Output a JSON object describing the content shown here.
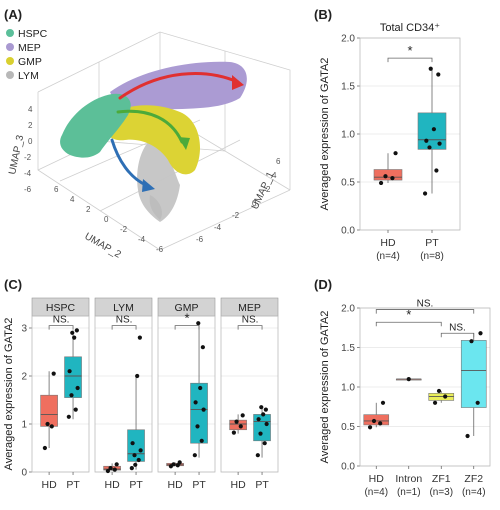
{
  "panel_labels": [
    "(A)",
    "(B)",
    "(C)",
    "(D)"
  ],
  "colors": {
    "hsc": "#5bbf9a",
    "mep": "#a999d1",
    "gmp": "#d9d030",
    "lym": "#b8b8b8",
    "hd": "#ef6f5f",
    "pt": "#20b5c0",
    "intron": "#f0aa9e",
    "zf1": "#e9ed5a",
    "zf2": "#6be6ef",
    "strip_bg": "#d3d3d3",
    "grid": "#e4e4e4",
    "arrow_red": "#e03030",
    "arrow_green": "#4caa3a",
    "arrow_blue": "#2e6fb5"
  },
  "umap": {
    "legend": [
      {
        "label": "HSPC",
        "color": "#5bbf9a"
      },
      {
        "label": "MEP",
        "color": "#a999d1"
      },
      {
        "label": "GMP",
        "color": "#d9d030"
      },
      {
        "label": "LYM",
        "color": "#b8b8b8"
      }
    ],
    "axis_labels": {
      "x": "UMAP_2",
      "y": "UMAP_1",
      "z": "UMAP_3"
    },
    "ticks_z": [
      "4",
      "2",
      "0",
      "-2",
      "-4",
      "-6"
    ],
    "ticks_x": [
      "6",
      "4",
      "2",
      "0",
      "-2",
      "-4",
      "-6"
    ],
    "ticks_y": [
      "-6",
      "-4",
      "-2",
      "0",
      "2",
      "4",
      "6"
    ]
  },
  "chart_data": [
    {
      "panel": "(B)",
      "type": "box",
      "title": "Total CD34⁺",
      "ylabel": "Averaged expression of GATA2",
      "ylim": [
        0,
        2.0
      ],
      "yticks": [
        "0.0",
        "0.5",
        "1.0",
        "1.5",
        "2.0"
      ],
      "categories": [
        "HD\n(n=4)",
        "PT\n(n=8)"
      ],
      "boxes": [
        {
          "category": "HD",
          "n": "(n=4)",
          "color": "#ef6f5f",
          "min": 0.49,
          "q1": 0.52,
          "median": 0.55,
          "q3": 0.63,
          "max": 0.8,
          "points": [
            0.49,
            0.54,
            0.56,
            0.8
          ]
        },
        {
          "category": "PT",
          "n": "(n=8)",
          "color": "#20b5c0",
          "min": 0.38,
          "q1": 0.84,
          "median": 0.94,
          "q3": 1.22,
          "max": 1.68,
          "points": [
            0.38,
            0.62,
            0.86,
            0.9,
            0.93,
            1.05,
            1.62,
            1.68
          ]
        }
      ],
      "significance": [
        {
          "from": 0,
          "to": 1,
          "label": "*"
        }
      ]
    },
    {
      "panel": "(C)",
      "type": "box",
      "facets": [
        "HSPC",
        "LYM",
        "GMP",
        "MEP"
      ],
      "ylabel": "Averaged expression of GATA2",
      "ylim": [
        0,
        3.25
      ],
      "yticks": [
        "0",
        "1",
        "2",
        "3"
      ],
      "categories": [
        "HD",
        "PT"
      ],
      "panels": [
        {
          "facet": "HSPC",
          "sig": "NS.",
          "HD": {
            "min": 0.5,
            "q1": 0.95,
            "median": 1.2,
            "q3": 1.6,
            "max": 2.1,
            "points": [
              0.5,
              0.95,
              1.0,
              2.05
            ]
          },
          "PT": {
            "min": 1.1,
            "q1": 1.55,
            "median": 2.0,
            "q3": 2.4,
            "max": 2.95,
            "points": [
              1.15,
              1.3,
              1.6,
              1.75,
              2.1,
              2.8,
              2.95,
              2.9
            ]
          }
        },
        {
          "facet": "LYM",
          "sig": "NS.",
          "HD": {
            "min": 0.02,
            "q1": 0.04,
            "median": 0.06,
            "q3": 0.12,
            "max": 0.18,
            "points": [
              0.02,
              0.05,
              0.08,
              0.16
            ]
          },
          "PT": {
            "min": 0.05,
            "q1": 0.22,
            "median": 0.38,
            "q3": 0.88,
            "max": 2.0,
            "points": [
              0.08,
              0.25,
              0.35,
              0.45,
              0.6,
              2.0,
              2.8,
              0.15
            ]
          }
        },
        {
          "facet": "GMP",
          "sig": "*",
          "HD": {
            "min": 0.12,
            "q1": 0.13,
            "median": 0.15,
            "q3": 0.18,
            "max": 0.2,
            "points": [
              0.12,
              0.14,
              0.16,
              0.2
            ]
          },
          "PT": {
            "min": 0.3,
            "q1": 0.6,
            "median": 1.3,
            "q3": 1.85,
            "max": 3.1,
            "points": [
              0.35,
              0.65,
              0.95,
              1.3,
              1.45,
              1.75,
              2.6,
              3.1
            ]
          }
        },
        {
          "facet": "MEP",
          "sig": "NS.",
          "HD": {
            "min": 0.8,
            "q1": 0.88,
            "median": 1.0,
            "q3": 1.08,
            "max": 1.2,
            "points": [
              0.82,
              0.95,
              1.05,
              1.18
            ]
          },
          "PT": {
            "min": 0.3,
            "q1": 0.65,
            "median": 1.05,
            "q3": 1.2,
            "max": 1.35,
            "points": [
              0.35,
              0.6,
              0.8,
              1.0,
              1.1,
              1.2,
              1.3,
              1.35
            ]
          }
        }
      ]
    },
    {
      "panel": "(D)",
      "type": "box",
      "ylabel": "Averaged expression of GATA2",
      "ylim": [
        0,
        2.0
      ],
      "yticks": [
        "0.0",
        "0.5",
        "1.0",
        "1.5",
        "2.0"
      ],
      "categories": [
        "HD\n(n=4)",
        "Intron\n(n=1)",
        "ZF1\n(n=3)",
        "ZF2\n(n=4)"
      ],
      "boxes": [
        {
          "category": "HD",
          "n": "(n=4)",
          "color": "#ef6f5f",
          "min": 0.49,
          "q1": 0.52,
          "median": 0.57,
          "q3": 0.65,
          "max": 0.8,
          "points": [
            0.49,
            0.54,
            0.57,
            0.8
          ]
        },
        {
          "category": "Intron",
          "n": "(n=1)",
          "color": "#f0aa9e",
          "min": 1.1,
          "q1": 1.1,
          "median": 1.1,
          "q3": 1.1,
          "max": 1.1,
          "points": [
            1.1
          ]
        },
        {
          "category": "ZF1",
          "n": "(n=3)",
          "color": "#e9ed5a",
          "min": 0.8,
          "q1": 0.83,
          "median": 0.88,
          "q3": 0.92,
          "max": 0.95,
          "points": [
            0.8,
            0.88,
            0.95
          ]
        },
        {
          "category": "ZF2",
          "n": "(n=4)",
          "color": "#6be6ef",
          "min": 0.38,
          "q1": 0.74,
          "median": 1.21,
          "q3": 1.59,
          "max": 1.68,
          "points": [
            0.38,
            0.8,
            1.58,
            1.68
          ]
        }
      ],
      "significance": [
        {
          "from": 0,
          "to": 3,
          "label": "NS."
        },
        {
          "from": 0,
          "to": 2,
          "label": "*"
        },
        {
          "from": 2,
          "to": 3,
          "label": "NS."
        }
      ]
    }
  ]
}
